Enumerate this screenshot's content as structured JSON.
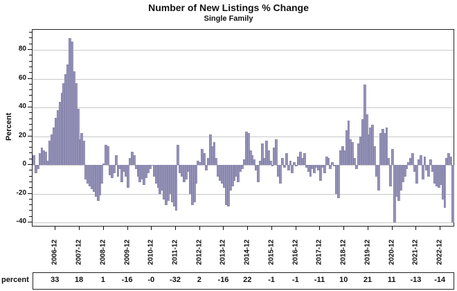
{
  "header": {
    "title": "Number of New Listings % Change",
    "subtitle": "Single Family"
  },
  "chart_data": {
    "type": "bar",
    "title": "Number of New Listings % Change",
    "subtitle": "Single Family",
    "xlabel": "",
    "ylabel": "Percent",
    "ylim": [
      -42.4,
      94
    ],
    "yticks": [
      -40,
      -20,
      0,
      20,
      40,
      60,
      80
    ],
    "y_minor_step": 4,
    "grid": true,
    "legend": "none",
    "bar_color": "#9693b8",
    "gridline_color": "#c9c9c9",
    "x_start": "2006-01",
    "x_frequency": "monthly",
    "x_tick_labels": [
      "2006-12",
      "2007-12",
      "2008-12",
      "2009-12",
      "2010-12",
      "2011-12",
      "2012-12",
      "2013-12",
      "2014-12",
      "2015-12",
      "2016-12",
      "2017-12",
      "2018-12",
      "2019-12",
      "2020-12",
      "2021-12",
      "2022-12"
    ],
    "x_tick_month_indices": [
      11,
      23,
      35,
      47,
      59,
      71,
      83,
      95,
      107,
      119,
      131,
      143,
      155,
      167,
      179,
      191,
      203
    ],
    "series": [
      {
        "name": "percent_change",
        "values": [
          7,
          -6,
          -3,
          8,
          12,
          10,
          9,
          3,
          17,
          21,
          26,
          33,
          38,
          44,
          50,
          57,
          63,
          70,
          88,
          86,
          65,
          57,
          39,
          18,
          22,
          17,
          -10,
          -13,
          -15,
          -17,
          -19,
          -22,
          -25,
          -21,
          -13,
          1,
          14,
          13,
          -7,
          -9,
          -6,
          7,
          -8,
          -3,
          -12,
          -5,
          -8,
          -16,
          5,
          9,
          7,
          -3,
          -8,
          -12,
          -10,
          -14,
          -9,
          -6,
          -3,
          -0.5,
          -8,
          -13,
          -16,
          -20,
          -18,
          -24,
          -28,
          -25,
          -20,
          -26,
          -29,
          -32,
          14,
          -6,
          -8,
          -12,
          -10,
          -5,
          -20,
          -28,
          -26,
          -13,
          3,
          2,
          11,
          8,
          -4,
          5,
          21,
          13,
          16,
          5,
          -8,
          -11,
          -13,
          -16,
          -28,
          -29,
          -18,
          -15,
          -11,
          -8,
          -12,
          -5,
          -3,
          4,
          23,
          22,
          10,
          7,
          4,
          -4,
          -12,
          3,
          15,
          5,
          17,
          10,
          3,
          -1,
          12,
          18,
          -8,
          -13,
          5,
          -2,
          8,
          -4,
          3,
          -6,
          2,
          -1,
          6,
          9,
          5,
          8,
          -2,
          -5,
          -8,
          -3,
          -6,
          -2,
          -4,
          -11,
          -2,
          -6,
          6,
          5,
          -3,
          2,
          -1,
          -20,
          -23,
          10,
          13,
          10,
          24,
          31,
          18,
          16,
          5,
          -3,
          15,
          20,
          32,
          56,
          35,
          21,
          26,
          28,
          13,
          -8,
          -18,
          22,
          25,
          22,
          26,
          5,
          -15,
          11,
          -40,
          -22,
          -25,
          -18,
          -12,
          -8,
          -3,
          2,
          5,
          8,
          -5,
          -13,
          4,
          7,
          -10,
          6,
          -4,
          -8,
          4,
          -5,
          -13,
          -15,
          -16,
          -14,
          -24,
          -30,
          5,
          8,
          6,
          -40
        ]
      }
    ],
    "table": {
      "row_label": "percent",
      "values": [
        "33",
        "18",
        "1",
        "-16",
        "-0",
        "-32",
        "2",
        "-16",
        "22",
        "-1",
        "-1",
        "-11",
        "10",
        "21",
        "11",
        "-13",
        "-14"
      ]
    }
  }
}
